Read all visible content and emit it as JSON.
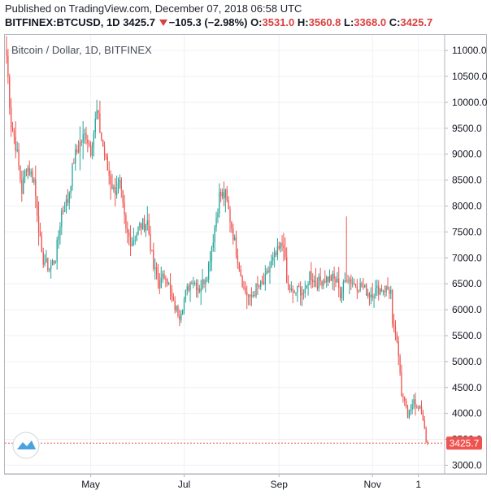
{
  "header": {
    "published": "Published on TradingView.com, December 07, 2018 06:58 UTC",
    "symbol": "BITFINEX:BTCUSD, 1D",
    "last": "3425.7",
    "change": "−105.3 (−2.98%)",
    "open_label": "O:",
    "open": "3531.0",
    "high_label": "H:",
    "high": "3560.8",
    "low_label": "L:",
    "low": "3368.0",
    "close_label": "C:",
    "close": "3425.7"
  },
  "colors": {
    "up": "#26a69a",
    "down": "#ef5350",
    "grid": "#eef0f3",
    "price_line": "#ef5350",
    "logo": "#4aa3df"
  },
  "icons": {
    "logo": "tradingview-logo-icon",
    "direction": "down-triangle-icon"
  },
  "chart_data": {
    "type": "candlestick",
    "title": "Bitcoin / Dollar, 1D, BITFINEX",
    "x_range": [
      "2018-03-07",
      "2018-12-07"
    ],
    "ylim": [
      2850,
      11300
    ],
    "x_ticks": [
      {
        "label": "May",
        "date": "2018-05-01"
      },
      {
        "label": "Jul",
        "date": "2018-07-01"
      },
      {
        "label": "Sep",
        "date": "2018-09-01"
      },
      {
        "label": "Nov",
        "date": "2018-11-01"
      },
      {
        "label": "1",
        "date": "2018-12-01"
      }
    ],
    "y_ticks": [
      3000,
      3500,
      4000,
      4500,
      5000,
      5500,
      6000,
      6500,
      7000,
      7500,
      8000,
      8500,
      9000,
      9500,
      10000,
      10500,
      11000
    ],
    "y_tick_labels": [
      "3000.0",
      "3500.0",
      "4000.0",
      "4500.0",
      "5000.0",
      "5500.0",
      "6000.0",
      "6500.0",
      "7000.0",
      "7500.0",
      "8000.0",
      "8500.0",
      "9000.0",
      "9500.0",
      "10000.0",
      "10500.0",
      "11000.0"
    ],
    "last_price": 3425.7,
    "last_price_label": "3425.7",
    "grid": true,
    "approx_close_path": [
      {
        "date": "2018-03-07",
        "close": 10900
      },
      {
        "date": "2018-03-10",
        "close": 9600
      },
      {
        "date": "2018-03-13",
        "close": 9200
      },
      {
        "date": "2018-03-17",
        "close": 8300
      },
      {
        "date": "2018-03-20",
        "close": 8800
      },
      {
        "date": "2018-03-25",
        "close": 8500
      },
      {
        "date": "2018-03-30",
        "close": 7000
      },
      {
        "date": "2018-04-04",
        "close": 6800
      },
      {
        "date": "2018-04-08",
        "close": 7000
      },
      {
        "date": "2018-04-12",
        "close": 7900
      },
      {
        "date": "2018-04-16",
        "close": 8100
      },
      {
        "date": "2018-04-20",
        "close": 8900
      },
      {
        "date": "2018-04-24",
        "close": 9200
      },
      {
        "date": "2018-04-28",
        "close": 9400
      },
      {
        "date": "2018-05-01",
        "close": 9100
      },
      {
        "date": "2018-05-05",
        "close": 9800
      },
      {
        "date": "2018-05-08",
        "close": 9300
      },
      {
        "date": "2018-05-12",
        "close": 8700
      },
      {
        "date": "2018-05-16",
        "close": 8300
      },
      {
        "date": "2018-05-20",
        "close": 8400
      },
      {
        "date": "2018-05-24",
        "close": 7500
      },
      {
        "date": "2018-05-28",
        "close": 7300
      },
      {
        "date": "2018-06-02",
        "close": 7600
      },
      {
        "date": "2018-06-07",
        "close": 7700
      },
      {
        "date": "2018-06-11",
        "close": 6800
      },
      {
        "date": "2018-06-15",
        "close": 6500
      },
      {
        "date": "2018-06-19",
        "close": 6700
      },
      {
        "date": "2018-06-24",
        "close": 6100
      },
      {
        "date": "2018-06-28",
        "close": 5900
      },
      {
        "date": "2018-07-02",
        "close": 6300
      },
      {
        "date": "2018-07-06",
        "close": 6600
      },
      {
        "date": "2018-07-11",
        "close": 6400
      },
      {
        "date": "2018-07-16",
        "close": 6700
      },
      {
        "date": "2018-07-20",
        "close": 7400
      },
      {
        "date": "2018-07-24",
        "close": 8200
      },
      {
        "date": "2018-07-28",
        "close": 8200
      },
      {
        "date": "2018-08-01",
        "close": 7600
      },
      {
        "date": "2018-08-05",
        "close": 7000
      },
      {
        "date": "2018-08-09",
        "close": 6400
      },
      {
        "date": "2018-08-13",
        "close": 6200
      },
      {
        "date": "2018-08-17",
        "close": 6400
      },
      {
        "date": "2018-08-22",
        "close": 6500
      },
      {
        "date": "2018-08-27",
        "close": 6900
      },
      {
        "date": "2018-08-31",
        "close": 7100
      },
      {
        "date": "2018-09-04",
        "close": 7300
      },
      {
        "date": "2018-09-06",
        "close": 6500
      },
      {
        "date": "2018-09-10",
        "close": 6300
      },
      {
        "date": "2018-09-14",
        "close": 6400
      },
      {
        "date": "2018-09-18",
        "close": 6300
      },
      {
        "date": "2018-09-21",
        "close": 6700
      },
      {
        "date": "2018-09-25",
        "close": 6500
      },
      {
        "date": "2018-10-01",
        "close": 6600
      },
      {
        "date": "2018-10-06",
        "close": 6600
      },
      {
        "date": "2018-10-10",
        "close": 6500
      },
      {
        "date": "2018-10-11",
        "close": 6250
      },
      {
        "date": "2018-10-15",
        "close": 6650
      },
      {
        "date": "2018-10-20",
        "close": 6500
      },
      {
        "date": "2018-10-25",
        "close": 6450
      },
      {
        "date": "2018-10-30",
        "close": 6300
      },
      {
        "date": "2018-11-05",
        "close": 6400
      },
      {
        "date": "2018-11-10",
        "close": 6400
      },
      {
        "date": "2018-11-13",
        "close": 6350
      },
      {
        "date": "2018-11-14",
        "close": 5650
      },
      {
        "date": "2018-11-16",
        "close": 5550
      },
      {
        "date": "2018-11-19",
        "close": 4800
      },
      {
        "date": "2018-11-20",
        "close": 4400
      },
      {
        "date": "2018-11-22",
        "close": 4300
      },
      {
        "date": "2018-11-24",
        "close": 3900
      },
      {
        "date": "2018-11-25",
        "close": 4000
      },
      {
        "date": "2018-11-28",
        "close": 4300
      },
      {
        "date": "2018-11-30",
        "close": 4050
      },
      {
        "date": "2018-12-02",
        "close": 4100
      },
      {
        "date": "2018-12-04",
        "close": 3900
      },
      {
        "date": "2018-12-06",
        "close": 3500
      },
      {
        "date": "2018-12-07",
        "close": 3425.7
      }
    ],
    "wick_spikes": [
      {
        "date": "2018-10-15",
        "high": 7800
      }
    ]
  }
}
